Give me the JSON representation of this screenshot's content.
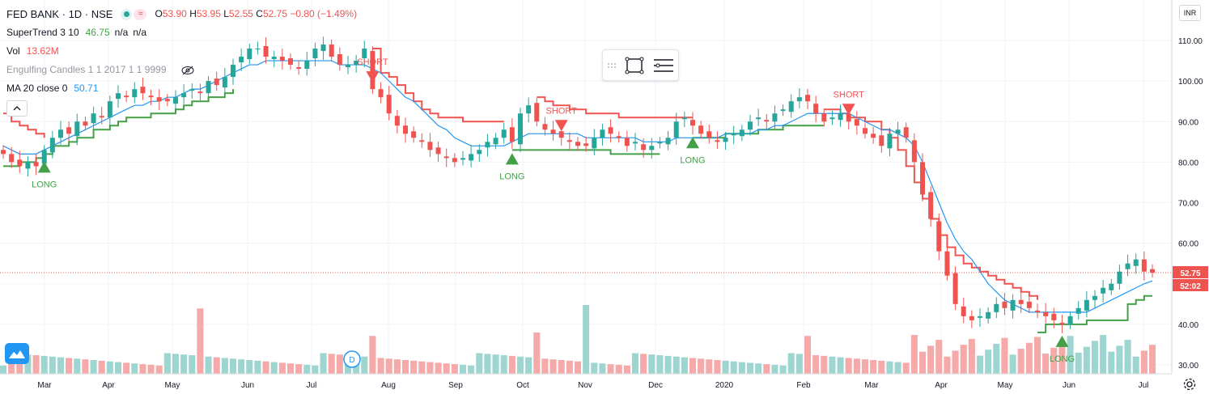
{
  "header": {
    "symbol": "FED BANK · 1D · NSE",
    "ohlc": [
      {
        "k": "O",
        "v": "53.90"
      },
      {
        "k": "H",
        "v": "53.95"
      },
      {
        "k": "L",
        "v": "52.55"
      },
      {
        "k": "C",
        "v": "52.75"
      }
    ],
    "change": "−0.80 (−1.49%)"
  },
  "indicators": {
    "supertrend": {
      "name": "SuperTrend 3 10",
      "value": "46.75",
      "extra": "n/a",
      "extra2": "n/a"
    },
    "volume": {
      "name": "Vol",
      "value": "13.62M"
    },
    "engulfing": {
      "name": "Engulfing Candles 1 1 2017 1 1 9999"
    },
    "ma": {
      "name": "MA 20 close 0",
      "value": "50.71"
    }
  },
  "currency": "INR",
  "colors": {
    "up": "#26a69a",
    "down": "#ef5350",
    "supertrend_up": "#43a047",
    "supertrend_down": "#f05350",
    "ma": "#2196f3",
    "vol_up": "#9fd5d0",
    "vol_down": "#f5a9a8"
  },
  "price_labels": {
    "last": "52.75",
    "countdown": "52:02"
  },
  "event_badge": "D",
  "icons": [
    "eye-off-icon",
    "chevron-up-icon",
    "rectangle-icon",
    "settings-lines-icon",
    "grip-icon",
    "logo-icon",
    "gear-icon"
  ],
  "chart_data": {
    "type": "candlestick",
    "y_axis": {
      "min": 30,
      "max": 110,
      "ticks": [
        "110.00",
        "100.00",
        "90.00",
        "80.00",
        "70.00",
        "60.00",
        "50.00",
        "40.00",
        "30.00"
      ]
    },
    "x_axis": {
      "labels": [
        "Mar",
        "Apr",
        "May",
        "Jun",
        "Jul",
        "Aug",
        "Sep",
        "Oct",
        "Nov",
        "Dec",
        "2020",
        "Feb",
        "Mar",
        "Apr",
        "May",
        "Jun",
        "Jul"
      ]
    },
    "close_path": [
      82,
      80,
      79,
      80,
      79,
      83,
      86,
      88,
      87,
      90,
      89,
      92,
      91,
      95,
      97,
      96,
      98,
      97,
      96,
      95,
      95,
      96,
      97,
      98,
      97,
      100,
      99,
      101,
      104,
      106,
      108,
      108,
      106,
      106,
      105,
      104,
      103,
      105,
      108,
      109,
      106,
      104,
      104,
      105,
      108,
      98,
      96,
      92,
      89,
      87,
      86,
      85,
      83,
      82,
      81,
      80,
      81,
      82,
      83,
      85,
      86,
      88,
      85,
      92,
      94,
      90,
      88,
      87,
      86,
      85,
      84,
      84,
      86,
      88,
      87,
      86,
      84,
      85,
      83,
      84,
      85,
      86,
      90,
      91,
      89,
      87,
      86,
      85,
      86,
      87,
      88,
      90,
      91,
      90,
      92,
      93,
      95,
      96,
      95,
      92,
      90,
      91,
      92,
      90,
      89,
      87,
      86,
      84,
      87,
      88,
      86,
      80,
      72,
      66,
      58,
      52,
      45,
      42,
      41,
      42,
      43,
      45,
      44,
      46,
      45,
      44,
      43,
      42,
      41,
      40,
      42,
      44,
      46,
      47,
      49,
      50,
      53,
      55,
      56,
      53,
      52.75
    ],
    "supertrend_up": [
      {
        "from": 0,
        "to": 28,
        "values": [
          79,
          79,
          80,
          80,
          81,
          82,
          84,
          84,
          85,
          86,
          86,
          88,
          88,
          89,
          90,
          91,
          91,
          91,
          92,
          92,
          92,
          93,
          94,
          95,
          95,
          96,
          96,
          97,
          98
        ]
      },
      {
        "from": 62,
        "to": 80,
        "values": [
          83,
          83,
          83,
          83,
          83,
          83,
          83,
          83,
          83,
          83,
          83,
          83,
          82,
          82,
          82,
          82,
          82,
          82,
          82
        ]
      },
      {
        "from": 84,
        "to": 100,
        "values": [
          86,
          86,
          86,
          86,
          87,
          87,
          87,
          87,
          88,
          88,
          88,
          89,
          89,
          89,
          89,
          89,
          89
        ]
      },
      {
        "from": 126,
        "to": 140,
        "values": [
          38,
          40,
          40,
          40,
          40,
          40,
          41,
          41,
          41,
          41,
          41,
          45,
          46,
          47,
          47
        ]
      }
    ],
    "supertrend_down": [
      {
        "from": 0,
        "to": 5,
        "values": [
          92,
          90,
          89,
          88,
          87,
          86
        ]
      },
      {
        "from": 45,
        "to": 61,
        "values": [
          108,
          102,
          101,
          99,
          97,
          95,
          93,
          92,
          91,
          91,
          91,
          90,
          90,
          90,
          90,
          90,
          90
        ]
      },
      {
        "from": 65,
        "to": 84,
        "values": [
          96,
          95,
          94,
          94,
          93,
          93,
          92,
          92,
          92,
          92,
          91,
          91,
          91,
          91,
          91,
          91,
          91,
          91,
          91,
          91
        ]
      },
      {
        "from": 100,
        "to": 126,
        "values": [
          93,
          93,
          92,
          91,
          91,
          90,
          90,
          88,
          86,
          83,
          79,
          75,
          71,
          66,
          62,
          59,
          57,
          55,
          54,
          53,
          52,
          51,
          50,
          49,
          48,
          47,
          46
        ]
      }
    ],
    "ma": [
      84,
      83,
      82,
      82,
      82,
      83,
      84,
      85,
      86,
      87,
      88,
      89,
      90,
      91,
      92,
      93,
      94,
      94,
      95,
      95,
      96,
      96,
      97,
      98,
      98,
      99,
      100,
      101,
      102,
      103,
      104,
      104,
      105,
      105,
      105,
      105,
      105,
      105,
      105,
      105,
      105,
      104,
      104,
      104,
      104,
      103,
      102,
      100,
      98,
      96,
      95,
      93,
      91,
      89,
      88,
      86,
      85,
      84,
      84,
      84,
      84,
      84,
      85,
      86,
      87,
      87,
      87,
      87,
      87,
      87,
      87,
      86,
      86,
      86,
      86,
      86,
      86,
      86,
      85,
      85,
      85,
      85,
      86,
      86,
      86,
      86,
      86,
      86,
      87,
      87,
      87,
      87,
      88,
      88,
      89,
      89,
      90,
      91,
      92,
      92,
      92,
      92,
      92,
      92,
      91,
      90,
      89,
      88,
      88,
      87,
      86,
      84,
      80,
      75,
      70,
      65,
      61,
      58,
      56,
      53,
      50,
      48,
      46,
      45,
      44,
      43,
      43,
      43,
      43,
      43,
      43,
      43,
      43,
      44,
      45,
      46,
      47,
      48,
      49,
      50,
      50.71
    ],
    "signals": [
      {
        "label": "LONG",
        "type": "long",
        "index": 5
      },
      {
        "label": "SHORT",
        "type": "short",
        "index": 45
      },
      {
        "label": "LONG",
        "type": "long",
        "index": 62
      },
      {
        "label": "SHORT",
        "type": "short",
        "index": 68
      },
      {
        "label": "LONG",
        "type": "long",
        "index": 84
      },
      {
        "label": "SHORT",
        "type": "short",
        "index": 103
      },
      {
        "label": "LONG",
        "type": "long",
        "index": 129
      }
    ],
    "volume_spikes": [
      {
        "index": 24,
        "level": 0.95
      },
      {
        "index": 45,
        "level": 0.55
      },
      {
        "index": 65,
        "level": 0.6
      },
      {
        "index": 71,
        "level": 1.0
      },
      {
        "index": 98,
        "level": 0.55
      }
    ]
  }
}
